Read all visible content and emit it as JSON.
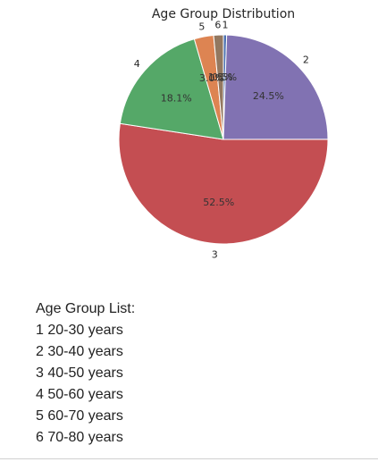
{
  "chart_data": {
    "type": "pie",
    "title": "Age Group Distribution",
    "slices": [
      {
        "label": "1",
        "pct": 0.5,
        "pct_label": "0.5%",
        "color": "#4c72b0"
      },
      {
        "label": "2",
        "pct": 24.5,
        "pct_label": "24.5%",
        "color": "#8172b2"
      },
      {
        "label": "3",
        "pct": 52.5,
        "pct_label": "52.5%",
        "color": "#c44e52"
      },
      {
        "label": "4",
        "pct": 18.1,
        "pct_label": "18.1%",
        "color": "#55a868"
      },
      {
        "label": "5",
        "pct": 3.0,
        "pct_label": "3.0%",
        "color": "#dd8452"
      },
      {
        "label": "6",
        "pct": 1.5,
        "pct_label": "1.5%",
        "color": "#937860"
      }
    ],
    "start_angle_deg": 90,
    "direction": "clockwise"
  },
  "legend": {
    "heading": "Age Group List:",
    "items": [
      "1 20-30 years",
      "2 30-40 years",
      "3 40-50 years",
      "4 50-60 years",
      "5 60-70 years",
      "6 70-80 years"
    ]
  }
}
